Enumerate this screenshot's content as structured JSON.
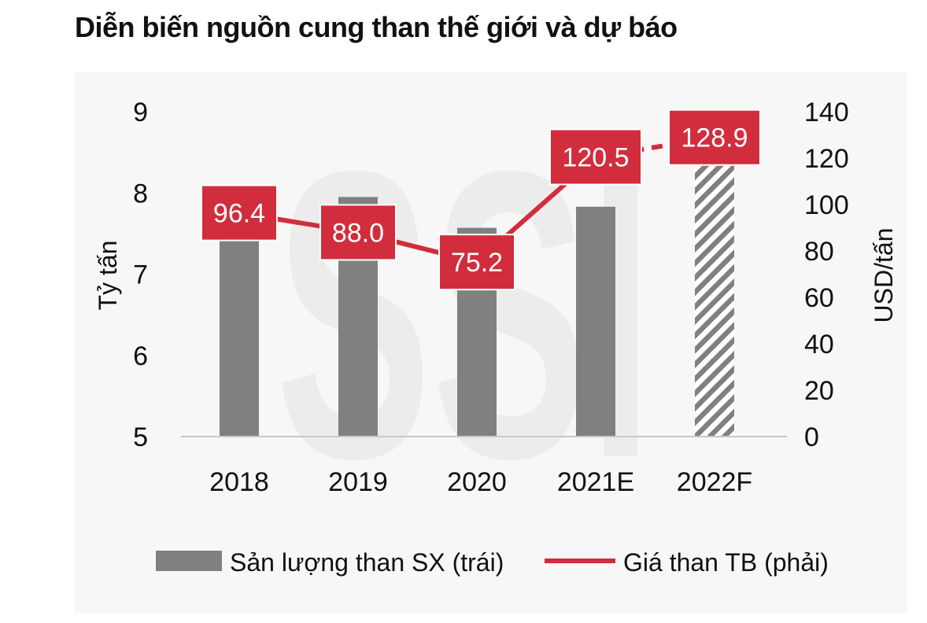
{
  "title": "Diễn biến nguồn cung than thế giới và dự báo",
  "watermark": "SSI",
  "colors": {
    "bar": "#808080",
    "line": "#d12d3c",
    "text": "#111111"
  },
  "chart_data": {
    "type": "bar",
    "categories": [
      "2018",
      "2019",
      "2020",
      "2021E",
      "2022F"
    ],
    "series": [
      {
        "name": "Sản lượng than SX (trái)",
        "type": "bar",
        "axis": "left",
        "values": [
          7.85,
          7.95,
          7.57,
          7.83,
          8.42
        ],
        "hatched": [
          false,
          false,
          false,
          false,
          true
        ]
      },
      {
        "name": "Giá than TB (phải)",
        "type": "line",
        "axis": "right",
        "values": [
          96.4,
          88.0,
          75.2,
          120.5,
          128.9
        ],
        "labels": [
          "96.4",
          "88.0",
          "75.2",
          "120.5",
          "128.9"
        ],
        "dashed_last_segment": true
      }
    ],
    "ylabel_left": "Tỷ tấn",
    "ylabel_right": "USD/tấn",
    "ylim_left": [
      5,
      9
    ],
    "ylim_right": [
      0,
      140
    ],
    "yticks_left": [
      "9",
      "8",
      "7",
      "6",
      "5"
    ],
    "yticks_right": [
      "140",
      "120",
      "100",
      "80",
      "60",
      "40",
      "20",
      "0"
    ],
    "grid": false,
    "legend": "bottom"
  }
}
